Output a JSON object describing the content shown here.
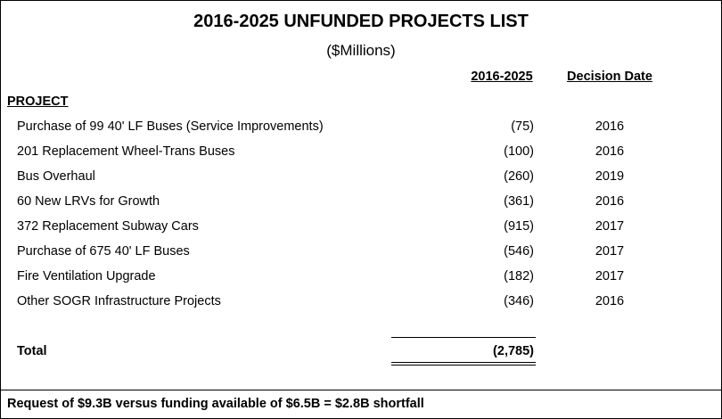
{
  "header": {
    "title": "2016-2025 UNFUNDED PROJECTS LIST",
    "subtitle": "($Millions)"
  },
  "table": {
    "columns": [
      "PROJECT",
      "2016-2025",
      "Decision Date"
    ],
    "rows": [
      [
        "Purchase of 99 40' LF Buses (Service Improvements)",
        "(75)",
        "2016"
      ],
      [
        "201 Replacement Wheel-Trans Buses",
        "(100)",
        "2016"
      ],
      [
        "Bus Overhaul",
        "(260)",
        "2019"
      ],
      [
        "60 New LRVs for Growth",
        "(361)",
        "2016"
      ],
      [
        "372 Replacement Subway Cars",
        "(915)",
        "2017"
      ],
      [
        "Purchase of 675 40' LF Buses",
        "(546)",
        "2017"
      ],
      [
        "Fire Ventilation Upgrade",
        "(182)",
        "2017"
      ],
      [
        "Other SOGR Infrastructure Projects",
        "(346)",
        "2016"
      ]
    ],
    "total": {
      "label": "Total",
      "value": "(2,785)"
    }
  },
  "footer": {
    "note": "Request of $9.3B versus funding available of $6.5B = $2.8B shortfall"
  }
}
